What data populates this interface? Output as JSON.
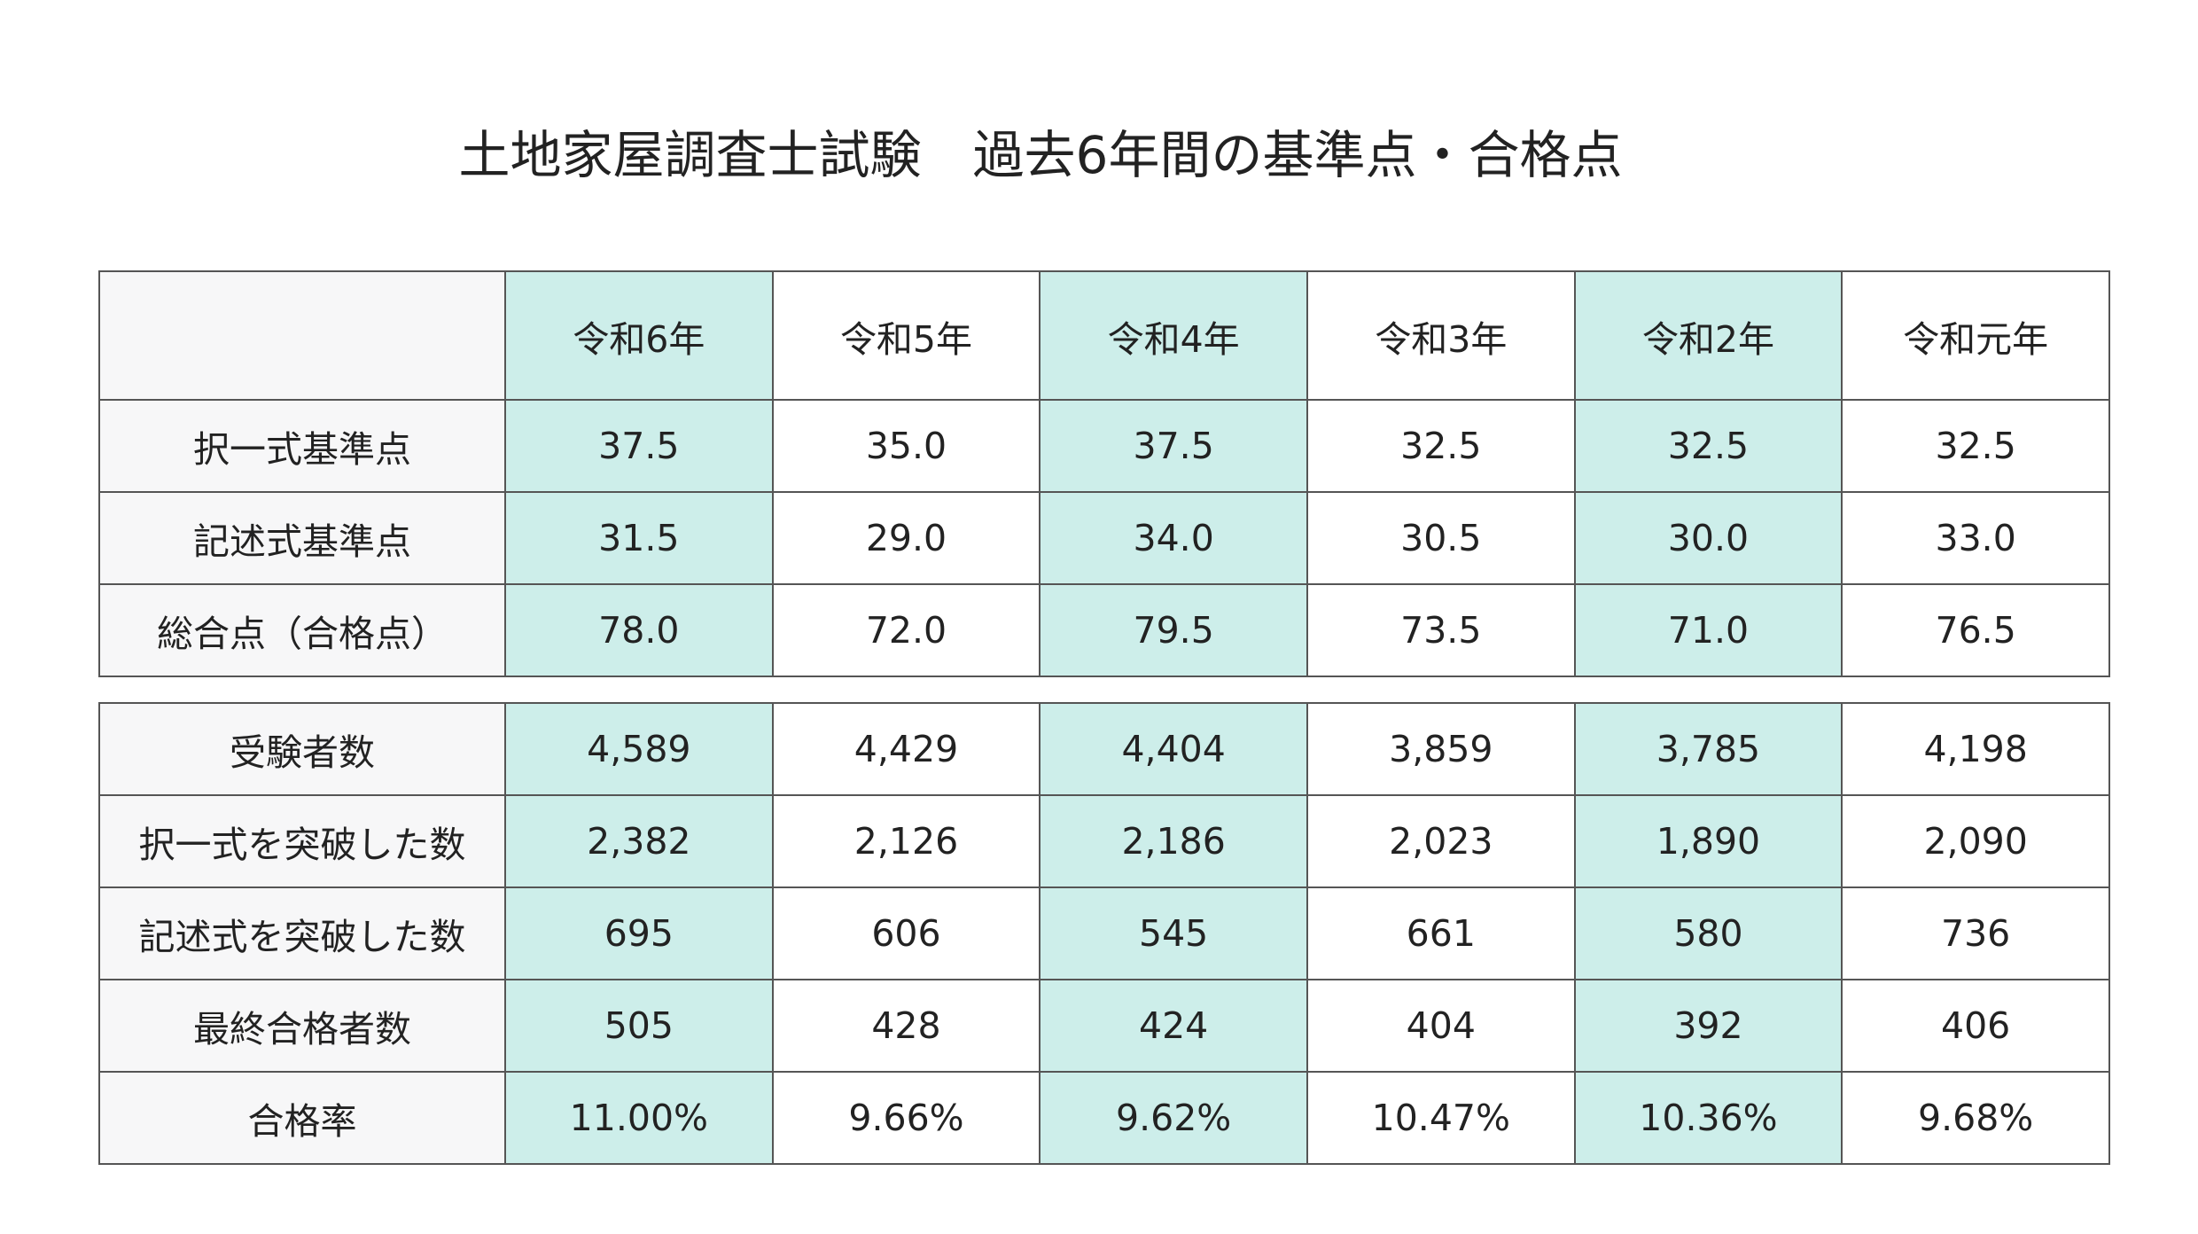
{
  "title": "土地家屋調査士試験　過去6年間の基準点・合格点",
  "columns": [
    "令和6年",
    "令和5年",
    "令和4年",
    "令和3年",
    "令和2年",
    "令和元年"
  ],
  "table1": {
    "rows": [
      {
        "label": "択一式基準点",
        "values": [
          "37.5",
          "35.0",
          "37.5",
          "32.5",
          "32.5",
          "32.5"
        ]
      },
      {
        "label": "記述式基準点",
        "values": [
          "31.5",
          "29.0",
          "34.0",
          "30.5",
          "30.0",
          "33.0"
        ]
      },
      {
        "label": "総合点（合格点）",
        "values": [
          "78.0",
          "72.0",
          "79.5",
          "73.5",
          "71.0",
          "76.5"
        ]
      }
    ]
  },
  "table2": {
    "rows": [
      {
        "label": "受験者数",
        "values": [
          "4,589",
          "4,429",
          "4,404",
          "3,859",
          "3,785",
          "4,198"
        ]
      },
      {
        "label": "択一式を突破した数",
        "values": [
          "2,382",
          "2,126",
          "2,186",
          "2,023",
          "1,890",
          "2,090"
        ]
      },
      {
        "label": "記述式を突破した数",
        "values": [
          "695",
          "606",
          "545",
          "661",
          "580",
          "736"
        ]
      },
      {
        "label": "最終合格者数",
        "values": [
          "505",
          "428",
          "424",
          "404",
          "392",
          "406"
        ]
      },
      {
        "label": "合格率",
        "values": [
          "11.00%",
          "9.66%",
          "9.62%",
          "10.47%",
          "10.36%",
          "9.68%"
        ]
      }
    ]
  }
}
